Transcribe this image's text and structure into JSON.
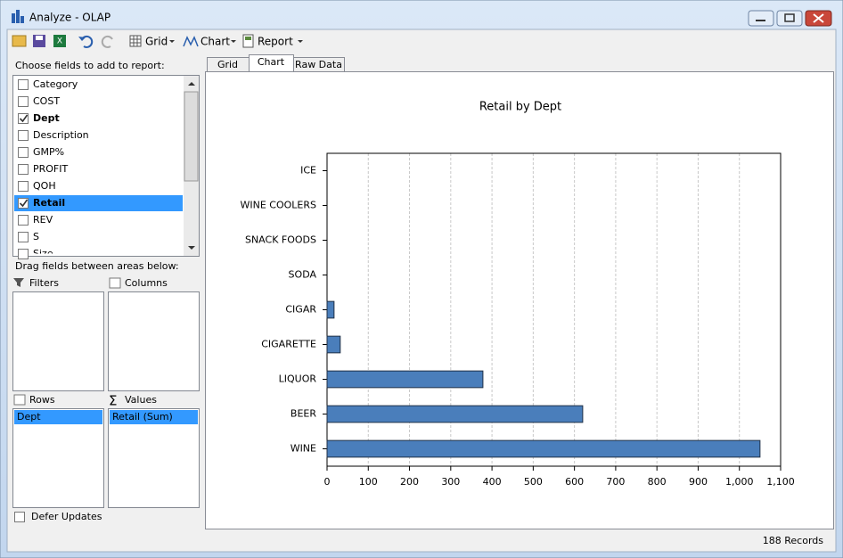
{
  "window": {
    "title": "Analyze - OLAP"
  },
  "toolbar": {
    "grid": "Grid",
    "chart": "Chart",
    "report": "Report"
  },
  "fields": {
    "heading": "Choose fields to add to report:",
    "items": [
      {
        "label": "Category",
        "checked": false,
        "selected": false
      },
      {
        "label": "COST",
        "checked": false,
        "selected": false
      },
      {
        "label": "Dept",
        "checked": true,
        "selected": false
      },
      {
        "label": "Description",
        "checked": false,
        "selected": false
      },
      {
        "label": "GMP%",
        "checked": false,
        "selected": false
      },
      {
        "label": "PROFIT",
        "checked": false,
        "selected": false
      },
      {
        "label": "QOH",
        "checked": false,
        "selected": false
      },
      {
        "label": "Retail",
        "checked": true,
        "selected": true
      },
      {
        "label": "REV",
        "checked": false,
        "selected": false
      },
      {
        "label": "S",
        "checked": false,
        "selected": false
      },
      {
        "label": "Size",
        "checked": false,
        "selected": false
      }
    ]
  },
  "areas": {
    "heading": "Drag fields between areas below:",
    "filters": "Filters",
    "columns": "Columns",
    "rows": "Rows",
    "values": "Values",
    "rows_items": [
      "Dept"
    ],
    "values_items": [
      "Retail (Sum)"
    ]
  },
  "defer_updates": "Defer Updates",
  "tabs": [
    {
      "label": "Grid",
      "active": false
    },
    {
      "label": "Chart",
      "active": true
    },
    {
      "label": "Raw Data",
      "active": false
    }
  ],
  "status": "188 Records",
  "chart_data": {
    "type": "hbar",
    "title": "Retail by Dept",
    "categories": [
      "ICE",
      "WINE COOLERS",
      "SNACK FOODS",
      "SODA",
      "CIGAR",
      "CIGARETTE",
      "LIQUOR",
      "BEER",
      "WINE"
    ],
    "values": [
      0,
      0,
      0,
      0,
      17,
      32,
      378,
      620,
      1050
    ],
    "color": "#4a7ebb",
    "xlim": [
      0,
      1100
    ],
    "xticks": [
      0,
      100,
      200,
      300,
      400,
      500,
      600,
      700,
      800,
      900,
      {
        "value": 1000,
        "label": "1,000"
      },
      {
        "value": 1100,
        "label": "1,100"
      }
    ],
    "grid": true
  }
}
